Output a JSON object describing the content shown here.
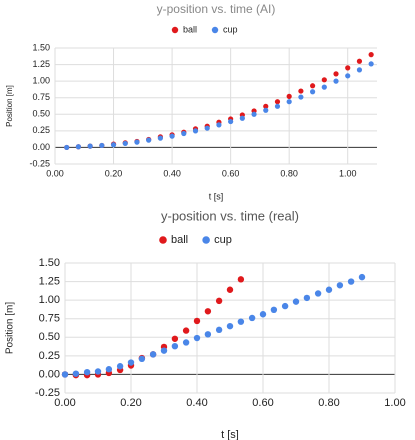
{
  "chart_data": [
    {
      "type": "scatter",
      "title": "y-position vs. time (AI)",
      "x_label": "t [s]",
      "y_label": "Position [m]",
      "x": [
        0.04,
        0.08,
        0.12,
        0.16,
        0.2,
        0.24,
        0.28,
        0.32,
        0.36,
        0.4,
        0.44,
        0.48,
        0.52,
        0.56,
        0.6,
        0.64,
        0.68,
        0.72,
        0.76,
        0.8,
        0.84,
        0.88,
        0.92,
        0.96,
        1.0,
        1.04,
        1.08
      ],
      "series": [
        {
          "name": "ball",
          "color": "#e0191c",
          "values": [
            0.0,
            0.01,
            0.02,
            0.03,
            0.05,
            0.07,
            0.09,
            0.12,
            0.16,
            0.19,
            0.23,
            0.28,
            0.32,
            0.38,
            0.43,
            0.49,
            0.55,
            0.62,
            0.69,
            0.77,
            0.85,
            0.93,
            1.02,
            1.11,
            1.2,
            1.3,
            1.4
          ]
        },
        {
          "name": "cup",
          "color": "#4a86e8",
          "values": [
            0.0,
            0.01,
            0.02,
            0.03,
            0.04,
            0.06,
            0.08,
            0.11,
            0.14,
            0.17,
            0.21,
            0.25,
            0.29,
            0.34,
            0.39,
            0.44,
            0.5,
            0.56,
            0.62,
            0.69,
            0.76,
            0.84,
            0.91,
            1.0,
            1.08,
            1.17,
            1.26
          ]
        }
      ],
      "xlim": [
        0,
        1.1
      ],
      "xticks": [
        {
          "value": 0,
          "label": "0.00"
        },
        {
          "value": 0.2,
          "label": "0.20"
        },
        {
          "value": 0.4,
          "label": "0.40"
        },
        {
          "value": 0.6,
          "label": "0.60"
        },
        {
          "value": 0.8,
          "label": "0.80"
        },
        {
          "value": 1.0,
          "label": "1.00"
        }
      ],
      "ylim": [
        -0.25,
        1.5
      ],
      "yticks": [
        {
          "value": -0.25,
          "label": "-0.25"
        },
        {
          "value": 0,
          "label": "0.00"
        },
        {
          "value": 0.25,
          "label": "0.25"
        },
        {
          "value": 0.5,
          "label": "0.50"
        },
        {
          "value": 0.75,
          "label": "0.75"
        },
        {
          "value": 1.0,
          "label": "1.00"
        },
        {
          "value": 1.25,
          "label": "1.25"
        },
        {
          "value": 1.5,
          "label": "1.50"
        }
      ],
      "grid": true,
      "legend": "top"
    },
    {
      "type": "scatter",
      "title": "y-position vs. time (real)",
      "x_label": "t [s]",
      "y_label": "Position [m]",
      "series": [
        {
          "name": "ball",
          "color": "#e0191c",
          "x": [
            0,
            0.033,
            0.067,
            0.1,
            0.133,
            0.167,
            0.2,
            0.233,
            0.267,
            0.3,
            0.333,
            0.367,
            0.4,
            0.433,
            0.467,
            0.5,
            0.533
          ],
          "values": [
            0.0,
            -0.01,
            -0.01,
            0.0,
            0.02,
            0.06,
            0.12,
            0.22,
            0.27,
            0.37,
            0.48,
            0.59,
            0.72,
            0.85,
            0.99,
            1.14,
            1.28
          ]
        },
        {
          "name": "cup",
          "color": "#4a86e8",
          "x": [
            0,
            0.033,
            0.067,
            0.1,
            0.133,
            0.167,
            0.2,
            0.233,
            0.267,
            0.3,
            0.333,
            0.367,
            0.4,
            0.433,
            0.467,
            0.5,
            0.533,
            0.567,
            0.6,
            0.633,
            0.667,
            0.7,
            0.733,
            0.767,
            0.8,
            0.833,
            0.867,
            0.9
          ],
          "values": [
            0.0,
            0.01,
            0.03,
            0.04,
            0.07,
            0.11,
            0.16,
            0.21,
            0.27,
            0.32,
            0.38,
            0.43,
            0.49,
            0.54,
            0.6,
            0.65,
            0.71,
            0.76,
            0.81,
            0.87,
            0.92,
            0.98,
            1.03,
            1.09,
            1.14,
            1.2,
            1.25,
            1.31
          ]
        }
      ],
      "xlim": [
        0,
        1.0
      ],
      "xticks": [
        {
          "value": 0,
          "label": "0.00"
        },
        {
          "value": 0.2,
          "label": "0.20"
        },
        {
          "value": 0.4,
          "label": "0.40"
        },
        {
          "value": 0.6,
          "label": "0.60"
        },
        {
          "value": 0.8,
          "label": "0.80"
        },
        {
          "value": 1.0,
          "label": "1.00"
        }
      ],
      "ylim": [
        -0.25,
        1.5
      ],
      "yticks": [
        {
          "value": -0.25,
          "label": "-0.25"
        },
        {
          "value": 0,
          "label": "0.00"
        },
        {
          "value": 0.25,
          "label": "0.25"
        },
        {
          "value": 0.5,
          "label": "0.50"
        },
        {
          "value": 0.75,
          "label": "0.75"
        },
        {
          "value": 1.0,
          "label": "1.00"
        },
        {
          "value": 1.25,
          "label": "1.25"
        },
        {
          "value": 1.5,
          "label": "1.50"
        }
      ],
      "grid": true,
      "legend": "top"
    }
  ]
}
